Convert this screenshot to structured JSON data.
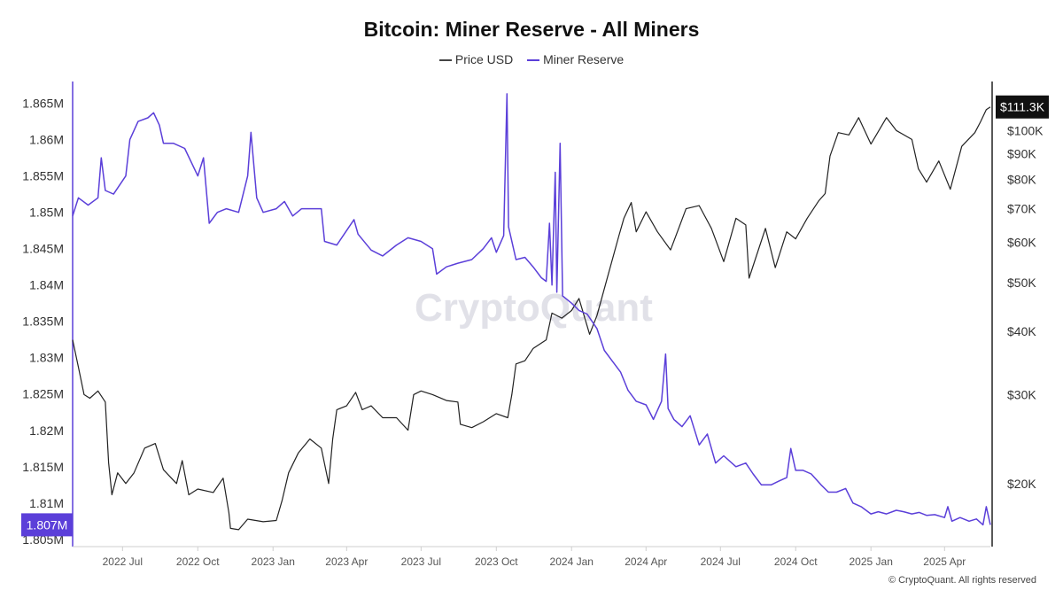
{
  "chart_data": {
    "type": "line",
    "title": "Bitcoin: Miner Reserve - All Miners",
    "legend": [
      "Price USD",
      "Miner Reserve"
    ],
    "legend_placement": "top-center",
    "grid": false,
    "x_ticks": [
      "2022 Jul",
      "2022 Oct",
      "2023 Jan",
      "2023 Apr",
      "2023 Jul",
      "2023 Oct",
      "2024 Jan",
      "2024 Apr",
      "2024 Jul",
      "2024 Oct",
      "2025 Jan",
      "2025 Apr"
    ],
    "x_range": [
      "2022-05-01",
      "2025-05-27"
    ],
    "y_left": {
      "ticks": [
        "1.865M",
        "1.86M",
        "1.855M",
        "1.85M",
        "1.845M",
        "1.84M",
        "1.835M",
        "1.83M",
        "1.825M",
        "1.82M",
        "1.815M",
        "1.81M",
        "1.805M"
      ],
      "tick_values": [
        1865000,
        1860000,
        1855000,
        1850000,
        1845000,
        1840000,
        1835000,
        1830000,
        1825000,
        1820000,
        1815000,
        1810000,
        1805000
      ],
      "range": [
        1804000,
        1868000
      ],
      "current_label": "1.807M",
      "current_value": 1807000
    },
    "y_right": {
      "scale": "log",
      "ticks": [
        "$100K",
        "$90K",
        "$80K",
        "$70K",
        "$60K",
        "$50K",
        "$40K",
        "$30K",
        "$20K"
      ],
      "tick_values": [
        100000,
        90000,
        80000,
        70000,
        60000,
        50000,
        40000,
        30000,
        20000
      ],
      "range": [
        15000,
        125000
      ],
      "current_label": "$111.3K",
      "current_value": 111300
    },
    "series": [
      {
        "name": "Price USD",
        "color": "#222222",
        "axis": "right",
        "points": [
          [
            "2022-05-01",
            38500
          ],
          [
            "2022-05-08",
            34000
          ],
          [
            "2022-05-15",
            30000
          ],
          [
            "2022-05-22",
            29500
          ],
          [
            "2022-06-01",
            30500
          ],
          [
            "2022-06-10",
            29000
          ],
          [
            "2022-06-14",
            22000
          ],
          [
            "2022-06-18",
            19000
          ],
          [
            "2022-06-25",
            21000
          ],
          [
            "2022-07-05",
            20000
          ],
          [
            "2022-07-15",
            21000
          ],
          [
            "2022-07-28",
            23500
          ],
          [
            "2022-08-10",
            24000
          ],
          [
            "2022-08-20",
            21300
          ],
          [
            "2022-09-05",
            20000
          ],
          [
            "2022-09-12",
            22200
          ],
          [
            "2022-09-20",
            19000
          ],
          [
            "2022-10-01",
            19500
          ],
          [
            "2022-10-20",
            19200
          ],
          [
            "2022-11-01",
            20500
          ],
          [
            "2022-11-08",
            17500
          ],
          [
            "2022-11-10",
            16300
          ],
          [
            "2022-11-20",
            16200
          ],
          [
            "2022-12-01",
            17000
          ],
          [
            "2022-12-20",
            16800
          ],
          [
            "2023-01-05",
            16900
          ],
          [
            "2023-01-12",
            18500
          ],
          [
            "2023-01-20",
            21000
          ],
          [
            "2023-02-01",
            23000
          ],
          [
            "2023-02-15",
            24500
          ],
          [
            "2023-03-01",
            23500
          ],
          [
            "2023-03-10",
            20000
          ],
          [
            "2023-03-15",
            24500
          ],
          [
            "2023-03-20",
            28000
          ],
          [
            "2023-04-01",
            28500
          ],
          [
            "2023-04-12",
            30300
          ],
          [
            "2023-04-20",
            28000
          ],
          [
            "2023-05-01",
            28500
          ],
          [
            "2023-05-15",
            27000
          ],
          [
            "2023-06-01",
            27000
          ],
          [
            "2023-06-15",
            25500
          ],
          [
            "2023-06-22",
            30000
          ],
          [
            "2023-07-01",
            30500
          ],
          [
            "2023-07-15",
            30000
          ],
          [
            "2023-08-01",
            29200
          ],
          [
            "2023-08-15",
            29000
          ],
          [
            "2023-08-18",
            26200
          ],
          [
            "2023-09-01",
            25800
          ],
          [
            "2023-09-15",
            26500
          ],
          [
            "2023-10-01",
            27500
          ],
          [
            "2023-10-15",
            27000
          ],
          [
            "2023-10-20",
            30000
          ],
          [
            "2023-10-25",
            34500
          ],
          [
            "2023-11-05",
            35000
          ],
          [
            "2023-11-15",
            37000
          ],
          [
            "2023-12-01",
            38500
          ],
          [
            "2023-12-08",
            43500
          ],
          [
            "2023-12-20",
            42500
          ],
          [
            "2024-01-01",
            44000
          ],
          [
            "2024-01-10",
            46500
          ],
          [
            "2024-01-23",
            39500
          ],
          [
            "2024-02-01",
            43000
          ],
          [
            "2024-02-15",
            52000
          ],
          [
            "2024-02-28",
            62000
          ],
          [
            "2024-03-05",
            67000
          ],
          [
            "2024-03-14",
            72000
          ],
          [
            "2024-03-20",
            63000
          ],
          [
            "2024-04-01",
            69000
          ],
          [
            "2024-04-15",
            63000
          ],
          [
            "2024-05-01",
            58000
          ],
          [
            "2024-05-20",
            70000
          ],
          [
            "2024-06-05",
            71000
          ],
          [
            "2024-06-20",
            64000
          ],
          [
            "2024-07-05",
            55000
          ],
          [
            "2024-07-20",
            67000
          ],
          [
            "2024-08-01",
            65000
          ],
          [
            "2024-08-05",
            51000
          ],
          [
            "2024-08-25",
            64000
          ],
          [
            "2024-09-06",
            53500
          ],
          [
            "2024-09-20",
            63000
          ],
          [
            "2024-10-01",
            61000
          ],
          [
            "2024-10-15",
            67000
          ],
          [
            "2024-10-29",
            72500
          ],
          [
            "2024-11-06",
            75000
          ],
          [
            "2024-11-12",
            89000
          ],
          [
            "2024-11-22",
            99000
          ],
          [
            "2024-12-05",
            98000
          ],
          [
            "2024-12-17",
            106000
          ],
          [
            "2025-01-01",
            94000
          ],
          [
            "2025-01-20",
            106000
          ],
          [
            "2025-02-01",
            100000
          ],
          [
            "2025-02-20",
            96000
          ],
          [
            "2025-02-28",
            84000
          ],
          [
            "2025-03-10",
            79000
          ],
          [
            "2025-03-25",
            87000
          ],
          [
            "2025-04-08",
            76500
          ],
          [
            "2025-04-22",
            93000
          ],
          [
            "2025-05-08",
            99000
          ],
          [
            "2025-05-15",
            104000
          ],
          [
            "2025-05-22",
            110000
          ],
          [
            "2025-05-27",
            111300
          ]
        ]
      },
      {
        "name": "Miner Reserve",
        "color": "#5b3fd9",
        "axis": "left",
        "points": [
          [
            "2022-05-01",
            1849500
          ],
          [
            "2022-05-08",
            1852000
          ],
          [
            "2022-05-20",
            1851000
          ],
          [
            "2022-06-01",
            1852000
          ],
          [
            "2022-06-05",
            1857500
          ],
          [
            "2022-06-10",
            1853000
          ],
          [
            "2022-06-20",
            1852500
          ],
          [
            "2022-07-05",
            1855000
          ],
          [
            "2022-07-10",
            1860000
          ],
          [
            "2022-07-20",
            1862500
          ],
          [
            "2022-08-01",
            1863000
          ],
          [
            "2022-08-08",
            1863700
          ],
          [
            "2022-08-15",
            1862000
          ],
          [
            "2022-08-20",
            1859500
          ],
          [
            "2022-09-01",
            1859500
          ],
          [
            "2022-09-15",
            1858800
          ],
          [
            "2022-10-01",
            1855000
          ],
          [
            "2022-10-08",
            1857500
          ],
          [
            "2022-10-15",
            1848500
          ],
          [
            "2022-10-25",
            1850000
          ],
          [
            "2022-11-05",
            1850500
          ],
          [
            "2022-11-20",
            1850000
          ],
          [
            "2022-12-01",
            1855000
          ],
          [
            "2022-12-05",
            1861000
          ],
          [
            "2022-12-12",
            1852000
          ],
          [
            "2022-12-20",
            1850000
          ],
          [
            "2023-01-05",
            1850500
          ],
          [
            "2023-01-15",
            1851500
          ],
          [
            "2023-01-25",
            1849500
          ],
          [
            "2023-02-05",
            1850500
          ],
          [
            "2023-02-20",
            1850500
          ],
          [
            "2023-03-01",
            1850500
          ],
          [
            "2023-03-05",
            1846000
          ],
          [
            "2023-03-20",
            1845500
          ],
          [
            "2023-04-01",
            1847500
          ],
          [
            "2023-04-10",
            1849000
          ],
          [
            "2023-04-15",
            1847000
          ],
          [
            "2023-05-01",
            1844800
          ],
          [
            "2023-05-15",
            1844000
          ],
          [
            "2023-06-01",
            1845500
          ],
          [
            "2023-06-15",
            1846500
          ],
          [
            "2023-07-01",
            1846000
          ],
          [
            "2023-07-15",
            1845000
          ],
          [
            "2023-07-20",
            1841500
          ],
          [
            "2023-08-01",
            1842500
          ],
          [
            "2023-08-15",
            1843000
          ],
          [
            "2023-09-01",
            1843500
          ],
          [
            "2023-09-15",
            1845000
          ],
          [
            "2023-09-25",
            1846500
          ],
          [
            "2023-10-01",
            1844500
          ],
          [
            "2023-10-10",
            1846800
          ],
          [
            "2023-10-14",
            1866300
          ],
          [
            "2023-10-16",
            1848000
          ],
          [
            "2023-10-25",
            1843500
          ],
          [
            "2023-11-05",
            1843800
          ],
          [
            "2023-11-15",
            1842500
          ],
          [
            "2023-11-25",
            1841000
          ],
          [
            "2023-12-01",
            1840500
          ],
          [
            "2023-12-05",
            1848500
          ],
          [
            "2023-12-08",
            1840000
          ],
          [
            "2023-12-12",
            1855500
          ],
          [
            "2023-12-14",
            1839000
          ],
          [
            "2023-12-18",
            1859500
          ],
          [
            "2023-12-21",
            1838500
          ],
          [
            "2024-01-01",
            1837500
          ],
          [
            "2024-01-10",
            1836500
          ],
          [
            "2024-01-20",
            1836000
          ],
          [
            "2024-02-01",
            1834000
          ],
          [
            "2024-02-10",
            1831000
          ],
          [
            "2024-02-20",
            1829500
          ],
          [
            "2024-03-01",
            1828000
          ],
          [
            "2024-03-10",
            1825500
          ],
          [
            "2024-03-20",
            1824000
          ],
          [
            "2024-04-01",
            1823500
          ],
          [
            "2024-04-10",
            1821500
          ],
          [
            "2024-04-20",
            1824000
          ],
          [
            "2024-04-25",
            1830500
          ],
          [
            "2024-04-28",
            1823000
          ],
          [
            "2024-05-05",
            1821500
          ],
          [
            "2024-05-15",
            1820500
          ],
          [
            "2024-05-25",
            1822000
          ],
          [
            "2024-06-05",
            1818000
          ],
          [
            "2024-06-15",
            1819500
          ],
          [
            "2024-06-25",
            1815500
          ],
          [
            "2024-07-05",
            1816500
          ],
          [
            "2024-07-20",
            1815000
          ],
          [
            "2024-08-01",
            1815500
          ],
          [
            "2024-08-10",
            1814000
          ],
          [
            "2024-08-20",
            1812500
          ],
          [
            "2024-09-01",
            1812500
          ],
          [
            "2024-09-10",
            1813000
          ],
          [
            "2024-09-20",
            1813500
          ],
          [
            "2024-09-25",
            1817500
          ],
          [
            "2024-10-01",
            1814500
          ],
          [
            "2024-10-10",
            1814500
          ],
          [
            "2024-10-20",
            1814000
          ],
          [
            "2024-11-01",
            1812500
          ],
          [
            "2024-11-10",
            1811500
          ],
          [
            "2024-11-20",
            1811500
          ],
          [
            "2024-12-01",
            1812000
          ],
          [
            "2024-12-10",
            1810000
          ],
          [
            "2024-12-20",
            1809500
          ],
          [
            "2025-01-01",
            1808500
          ],
          [
            "2025-01-10",
            1808800
          ],
          [
            "2025-01-20",
            1808500
          ],
          [
            "2025-02-01",
            1809000
          ],
          [
            "2025-02-10",
            1808800
          ],
          [
            "2025-02-20",
            1808500
          ],
          [
            "2025-03-01",
            1808700
          ],
          [
            "2025-03-10",
            1808300
          ],
          [
            "2025-03-20",
            1808400
          ],
          [
            "2025-04-01",
            1808000
          ],
          [
            "2025-04-05",
            1809500
          ],
          [
            "2025-04-10",
            1807500
          ],
          [
            "2025-04-20",
            1808000
          ],
          [
            "2025-05-01",
            1807500
          ],
          [
            "2025-05-10",
            1807800
          ],
          [
            "2025-05-18",
            1807000
          ],
          [
            "2025-05-22",
            1809500
          ],
          [
            "2025-05-27",
            1807000
          ]
        ]
      }
    ]
  },
  "watermark": "CryptoQuant",
  "copyright": "© CryptoQuant. All rights reserved"
}
